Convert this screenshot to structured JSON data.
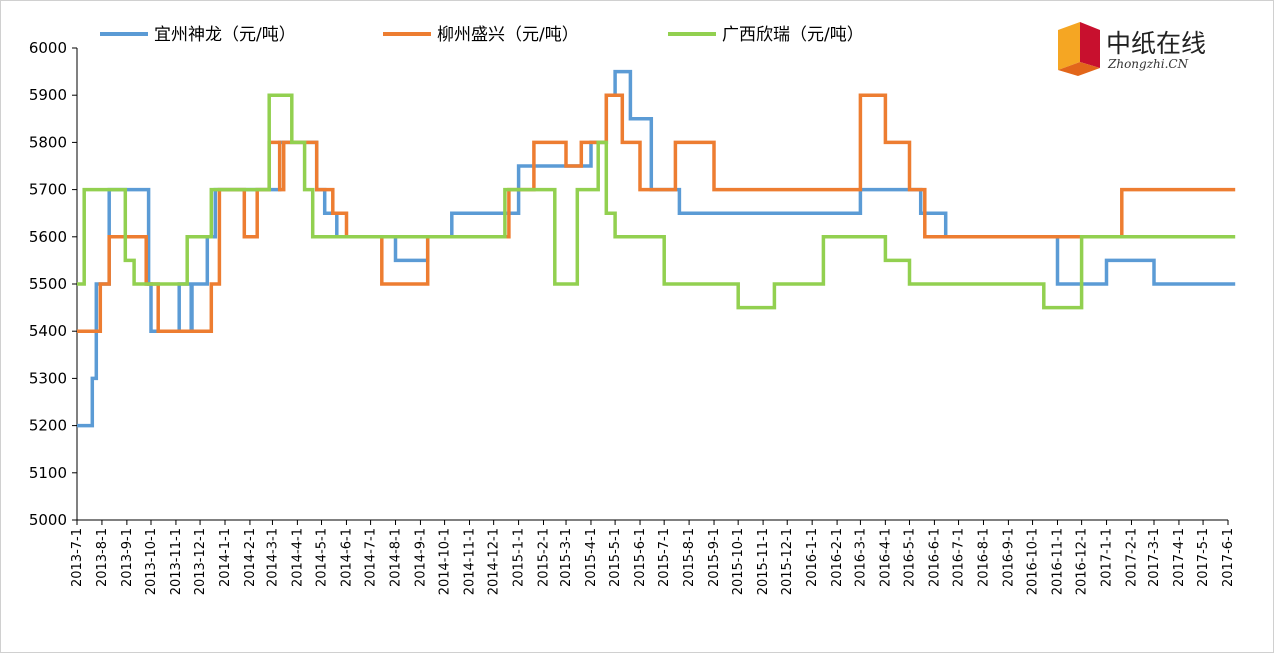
{
  "logo": {
    "name_cn": "中纸在线",
    "name_en": "Zhongzhi.CN"
  },
  "chart_data": {
    "type": "line",
    "step": true,
    "title": "",
    "xlabel": "",
    "ylabel": "",
    "ylim": [
      5000,
      6000
    ],
    "yticks": [
      5000,
      5100,
      5200,
      5300,
      5400,
      5500,
      5600,
      5700,
      5800,
      5900,
      6000
    ],
    "grid": false,
    "legend_position": "top",
    "x_tick_labels": [
      "2013-7-1",
      "2013-8-1",
      "2013-9-1",
      "2013-10-1",
      "2013-11-1",
      "2013-12-1",
      "2014-1-1",
      "2014-2-1",
      "2014-3-1",
      "2014-4-1",
      "2014-5-1",
      "2014-6-1",
      "2014-7-1",
      "2014-8-1",
      "2014-9-1",
      "2014-10-1",
      "2014-11-1",
      "2014-12-1",
      "2015-1-1",
      "2015-2-1",
      "2015-3-1",
      "2015-4-1",
      "2015-5-1",
      "2015-6-1",
      "2015-7-1",
      "2015-8-1",
      "2015-9-1",
      "2015-10-1",
      "2015-11-1",
      "2015-12-1",
      "2016-1-1",
      "2016-2-1",
      "2016-3-1",
      "2016-4-1",
      "2016-5-1",
      "2016-6-1",
      "2016-7-1",
      "2016-8-1",
      "2016-9-1",
      "2016-10-1",
      "2016-11-1",
      "2016-12-1",
      "2017-1-1",
      "2017-2-1",
      "2017-3-1",
      "2017-4-1",
      "2017-5-1",
      "2017-6-1"
    ],
    "series": [
      {
        "name": "宜州神龙（元/吨）",
        "color": "#5b9bd5",
        "points": [
          [
            "2013-7-1",
            5200
          ],
          [
            "2013-7-20",
            5300
          ],
          [
            "2013-7-25",
            5500
          ],
          [
            "2013-8-10",
            5700
          ],
          [
            "2013-9-10",
            5700
          ],
          [
            "2013-9-28",
            5500
          ],
          [
            "2013-10-1",
            5400
          ],
          [
            "2013-10-15",
            5400
          ],
          [
            "2013-11-5",
            5500
          ],
          [
            "2013-11-20",
            5400
          ],
          [
            "2013-11-21",
            5500
          ],
          [
            "2013-12-10",
            5600
          ],
          [
            "2013-12-20",
            5700
          ],
          [
            "2014-3-10",
            5800
          ],
          [
            "2014-4-20",
            5800
          ],
          [
            "2014-4-25",
            5700
          ],
          [
            "2014-5-5",
            5650
          ],
          [
            "2014-5-20",
            5600
          ],
          [
            "2014-8-1",
            5550
          ],
          [
            "2014-9-10",
            5600
          ],
          [
            "2014-10-10",
            5650
          ],
          [
            "2014-12-20",
            5650
          ],
          [
            "2015-1-1",
            5750
          ],
          [
            "2015-3-1",
            5750
          ],
          [
            "2015-4-1",
            5800
          ],
          [
            "2015-4-20",
            5900
          ],
          [
            "2015-5-1",
            5950
          ],
          [
            "2015-5-20",
            5850
          ],
          [
            "2015-6-15",
            5700
          ],
          [
            "2015-7-20",
            5650
          ],
          [
            "2016-3-1",
            5700
          ],
          [
            "2016-5-15",
            5650
          ],
          [
            "2016-6-15",
            5600
          ],
          [
            "2016-11-1",
            5500
          ],
          [
            "2017-1-1",
            5550
          ],
          [
            "2017-3-1",
            5500
          ],
          [
            "2017-6-10",
            5500
          ]
        ]
      },
      {
        "name": "柳州盛兴（元/吨）",
        "color": "#ed7d31",
        "points": [
          [
            "2013-7-1",
            5400
          ],
          [
            "2013-7-30",
            5500
          ],
          [
            "2013-8-10",
            5600
          ],
          [
            "2013-9-25",
            5500
          ],
          [
            "2013-10-10",
            5400
          ],
          [
            "2013-12-15",
            5500
          ],
          [
            "2013-12-25",
            5700
          ],
          [
            "2014-1-25",
            5600
          ],
          [
            "2014-2-10",
            5700
          ],
          [
            "2014-2-25",
            5800
          ],
          [
            "2014-3-10",
            5700
          ],
          [
            "2014-3-15",
            5800
          ],
          [
            "2014-4-25",
            5700
          ],
          [
            "2014-5-15",
            5650
          ],
          [
            "2014-6-1",
            5600
          ],
          [
            "2014-7-15",
            5500
          ],
          [
            "2014-9-10",
            5600
          ],
          [
            "2014-12-20",
            5700
          ],
          [
            "2015-1-20",
            5800
          ],
          [
            "2015-3-1",
            5750
          ],
          [
            "2015-3-20",
            5800
          ],
          [
            "2015-4-20",
            5900
          ],
          [
            "2015-5-10",
            5800
          ],
          [
            "2015-6-1",
            5700
          ],
          [
            "2015-7-15",
            5800
          ],
          [
            "2015-9-1",
            5700
          ],
          [
            "2016-3-1",
            5900
          ],
          [
            "2016-4-1",
            5800
          ],
          [
            "2016-5-1",
            5700
          ],
          [
            "2016-5-20",
            5600
          ],
          [
            "2017-1-20",
            5700
          ],
          [
            "2017-6-10",
            5700
          ]
        ]
      },
      {
        "name": "广西欣瑞（元/吨）",
        "color": "#92d050",
        "points": [
          [
            "2013-7-1",
            5500
          ],
          [
            "2013-7-10",
            5700
          ],
          [
            "2013-8-30",
            5550
          ],
          [
            "2013-9-10",
            5500
          ],
          [
            "2013-11-15",
            5600
          ],
          [
            "2013-12-15",
            5700
          ],
          [
            "2014-2-25",
            5900
          ],
          [
            "2014-3-25",
            5800
          ],
          [
            "2014-4-10",
            5700
          ],
          [
            "2014-4-20",
            5600
          ],
          [
            "2014-12-15",
            5700
          ],
          [
            "2015-2-15",
            5500
          ],
          [
            "2015-3-15",
            5700
          ],
          [
            "2015-4-10",
            5800
          ],
          [
            "2015-4-20",
            5650
          ],
          [
            "2015-5-1",
            5600
          ],
          [
            "2015-7-1",
            5500
          ],
          [
            "2015-10-1",
            5450
          ],
          [
            "2015-11-15",
            5500
          ],
          [
            "2016-1-15",
            5600
          ],
          [
            "2016-4-1",
            5550
          ],
          [
            "2016-5-1",
            5500
          ],
          [
            "2016-10-15",
            5450
          ],
          [
            "2016-12-1",
            5600
          ],
          [
            "2017-6-10",
            5600
          ]
        ]
      }
    ]
  }
}
